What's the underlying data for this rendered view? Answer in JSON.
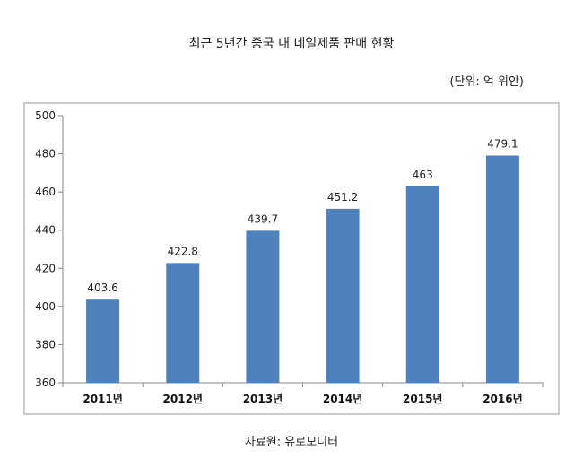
{
  "title": "최근 5년간 중국 내 네일제품 판매 현황",
  "unit_label": "(단위: 억 위안)",
  "source_label": "자료원: 유로모니터",
  "chart_data": {
    "type": "bar",
    "title": "최근 5년간 중국 내 네일제품 판매 현황",
    "xlabel": "",
    "ylabel": "",
    "categories": [
      "2011년",
      "2012년",
      "2013년",
      "2014년",
      "2015년",
      "2016년"
    ],
    "values": [
      403.6,
      422.8,
      439.7,
      451.2,
      463,
      479.1
    ],
    "value_labels": [
      "403.6",
      "422.8",
      "439.7",
      "451.2",
      "463",
      "479.1"
    ],
    "ylim": [
      360,
      500
    ],
    "yticks": [
      360,
      380,
      400,
      420,
      440,
      460,
      480,
      500
    ],
    "grid": false,
    "legend": "none",
    "bar_color": "#4f81bd"
  }
}
